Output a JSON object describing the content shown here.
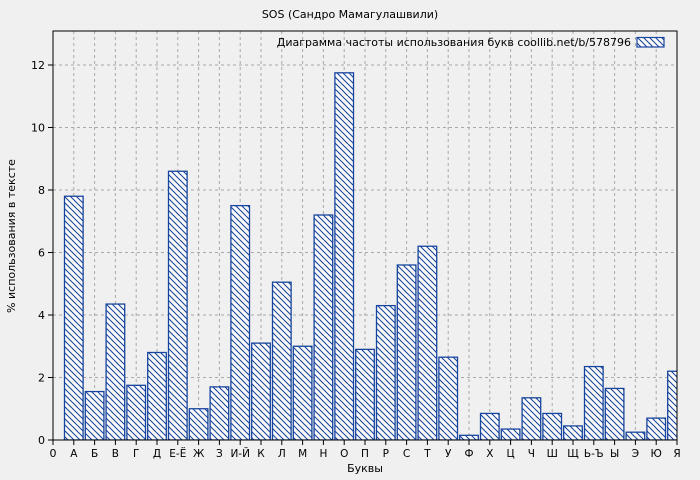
{
  "title": "SOS (Сандро Мамагулашвили)",
  "colors": {
    "bar_edge": "#17449e",
    "bar_fill": "#ffffff",
    "grid": "#a9a9a9",
    "axis": "#000000",
    "background": "#f0f0f0"
  },
  "chart_data": {
    "type": "bar",
    "title": "SOS (Сандро Мамагулашвили)",
    "legend": "Диаграмма частоты использования букв coollib.net/b/578796",
    "legend_position": "top-right-inside",
    "xlabel": "Буквы",
    "ylabel": "% использования в тексте",
    "origin_label": "0",
    "grid": true,
    "hatch": "backslash",
    "ylim": [
      0,
      13.1
    ],
    "yticks": [
      0,
      2,
      4,
      6,
      8,
      10,
      12
    ],
    "categories": [
      "А",
      "Б",
      "В",
      "Г",
      "Д",
      "Е-Ё",
      "Ж",
      "З",
      "И-Й",
      "К",
      "Л",
      "М",
      "Н",
      "О",
      "П",
      "Р",
      "С",
      "Т",
      "У",
      "Ф",
      "Х",
      "Ц",
      "Ч",
      "Ш",
      "Щ",
      "Ь-Ъ",
      "Ы",
      "Э",
      "Ю",
      "Я"
    ],
    "values": [
      7.8,
      1.55,
      4.35,
      1.75,
      2.8,
      8.6,
      1.0,
      1.7,
      7.5,
      3.1,
      5.05,
      3.0,
      7.2,
      11.75,
      2.9,
      4.3,
      5.6,
      6.2,
      2.65,
      0.15,
      0.85,
      0.35,
      1.35,
      0.85,
      0.45,
      2.35,
      1.65,
      0.25,
      0.7,
      2.2
    ]
  }
}
